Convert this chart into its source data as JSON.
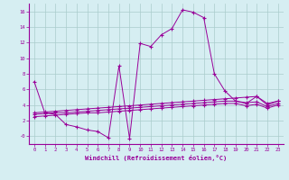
{
  "xlabel": "Windchill (Refroidissement éolien,°C)",
  "x_hours": [
    0,
    1,
    2,
    3,
    4,
    5,
    6,
    7,
    8,
    9,
    10,
    11,
    12,
    13,
    14,
    15,
    16,
    17,
    18,
    19,
    20,
    21,
    22,
    23
  ],
  "main_line": [
    7,
    3,
    2.8,
    1.5,
    1.2,
    0.8,
    0.6,
    -0.2,
    9,
    -0.3,
    11.9,
    11.5,
    13.0,
    13.8,
    16.2,
    15.9,
    15.2,
    8.0,
    5.8,
    4.5,
    4.2,
    5.1,
    4.0,
    4.5
  ],
  "upper_line": [
    3.0,
    3.1,
    3.2,
    3.3,
    3.4,
    3.5,
    3.6,
    3.7,
    3.8,
    3.9,
    4.0,
    4.1,
    4.2,
    4.3,
    4.4,
    4.5,
    4.6,
    4.7,
    4.8,
    4.9,
    5.0,
    5.1,
    4.2,
    4.5
  ],
  "mid_line": [
    2.8,
    2.9,
    3.0,
    3.0,
    3.1,
    3.2,
    3.3,
    3.4,
    3.5,
    3.6,
    3.7,
    3.8,
    3.9,
    4.0,
    4.1,
    4.2,
    4.3,
    4.4,
    4.5,
    4.5,
    4.3,
    4.4,
    3.8,
    4.2
  ],
  "lower_line": [
    2.5,
    2.6,
    2.7,
    2.8,
    2.9,
    3.0,
    3.0,
    3.1,
    3.2,
    3.3,
    3.4,
    3.5,
    3.6,
    3.7,
    3.8,
    3.9,
    4.0,
    4.1,
    4.2,
    4.2,
    3.9,
    4.1,
    3.6,
    4.0
  ],
  "line_color": "#990099",
  "bg_color": "#d6eef2",
  "grid_color": "#aacccc",
  "ylim": [
    -1.0,
    17.0
  ],
  "ytick_vals": [
    0,
    2,
    4,
    6,
    8,
    10,
    12,
    14,
    16
  ],
  "ytick_labels": [
    "-0",
    "2",
    "4",
    "6",
    "8",
    "10",
    "12",
    "14",
    "16"
  ]
}
